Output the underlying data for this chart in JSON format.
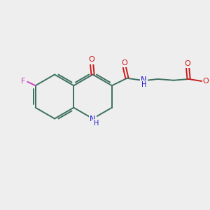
{
  "background_color": "#eeeeee",
  "bond_color": "#3d7060",
  "N_color": "#1a1acc",
  "O_color": "#cc1a1a",
  "F_color": "#cc44bb",
  "figsize": [
    3.0,
    3.0
  ],
  "dpi": 100,
  "xlim": [
    0,
    10
  ],
  "ylim": [
    0,
    10
  ]
}
